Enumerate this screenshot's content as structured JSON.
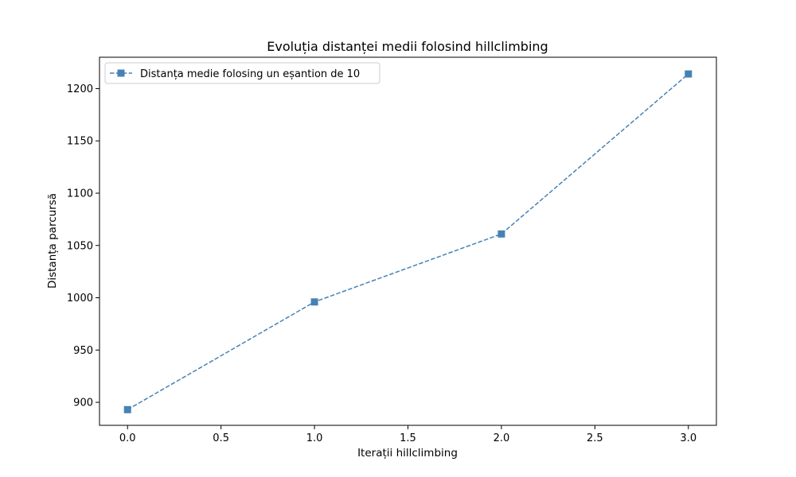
{
  "chart_data": {
    "type": "line",
    "title": "Evoluția distanței medii folosind hillclimbing",
    "xlabel": "Iterații hillclimbing",
    "ylabel": "Distanța parcursă",
    "xlim": [
      -0.15,
      3.15
    ],
    "ylim": [
      878,
      1230
    ],
    "xticks": [
      0.0,
      0.5,
      1.0,
      1.5,
      2.0,
      2.5,
      3.0
    ],
    "xtick_labels": [
      "0.0",
      "0.5",
      "1.0",
      "1.5",
      "2.0",
      "2.5",
      "3.0"
    ],
    "yticks": [
      900,
      950,
      1000,
      1050,
      1100,
      1150,
      1200
    ],
    "ytick_labels": [
      "900",
      "950",
      "1000",
      "1050",
      "1100",
      "1150",
      "1200"
    ],
    "grid": false,
    "legend_position": "top-left",
    "series": [
      {
        "name": "Distanța medie folosing un eșantion de 10",
        "color": "#4682b4",
        "line_style": "dashed",
        "marker": "square",
        "x": [
          0,
          1,
          2,
          3
        ],
        "y": [
          893,
          996,
          1061,
          1214
        ]
      }
    ]
  }
}
